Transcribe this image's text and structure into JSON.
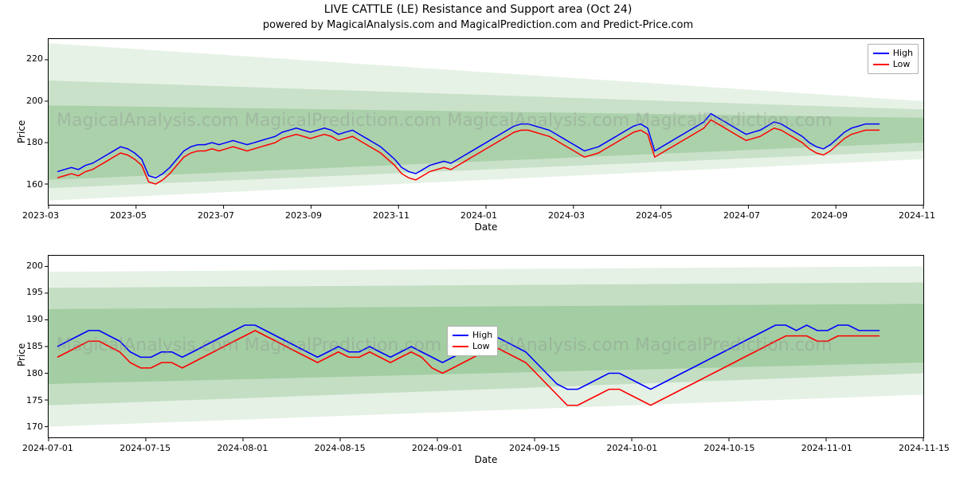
{
  "title": "LIVE CATTLE (LE) Resistance and Support area (Oct 24)",
  "subtitle": "powered by MagicalAnalysis.com and MagicalPrediction.com and Predict-Price.com",
  "watermark_text": "MagicalAnalysis.com          MagicalPrediction.com          MagicalAnalysis.com          MagicalPrediction.com",
  "watermark_color": "#8c8c8c",
  "watermark_opacity": 0.35,
  "panel_border_color": "#000000",
  "background_color": "#ffffff",
  "legend": {
    "high_label": "High",
    "low_label": "Low",
    "high_color": "#0000ff",
    "low_color": "#ff0000",
    "border_color": "#b0b0b0",
    "background": "#ffffff"
  },
  "top_chart": {
    "type": "line-with-bands",
    "xlabel": "Date",
    "ylabel": "Price",
    "ylim": [
      150,
      230
    ],
    "ytick_step": 20,
    "yticks": [
      160,
      180,
      200,
      220
    ],
    "xticks": [
      "2023-03",
      "2023-05",
      "2023-07",
      "2023-09",
      "2023-11",
      "2024-01",
      "2024-03",
      "2024-05",
      "2024-07",
      "2024-09",
      "2024-11"
    ],
    "high_color": "#0000ff",
    "low_color": "#ff0000",
    "band_color": "#7cb87c",
    "band_opacity_levels": [
      0.18,
      0.28,
      0.38
    ],
    "line_width": 1.5,
    "axis_fontsize": 11,
    "label_fontsize": 12,
    "bands": [
      {
        "y0_start": 152,
        "y0_end": 172,
        "y1_start": 228,
        "y1_end": 200
      },
      {
        "y0_start": 158,
        "y0_end": 176,
        "y1_start": 210,
        "y1_end": 196
      },
      {
        "y0_start": 162,
        "y0_end": 180,
        "y1_start": 198,
        "y1_end": 192
      }
    ],
    "high": [
      166,
      167,
      168,
      167,
      169,
      170,
      172,
      174,
      176,
      178,
      177,
      175,
      172,
      164,
      163,
      165,
      168,
      172,
      176,
      178,
      179,
      179,
      180,
      179,
      180,
      181,
      180,
      179,
      180,
      181,
      182,
      183,
      185,
      186,
      187,
      186,
      185,
      186,
      187,
      186,
      184,
      185,
      186,
      184,
      182,
      180,
      178,
      175,
      172,
      168,
      166,
      165,
      167,
      169,
      170,
      171,
      170,
      172,
      174,
      176,
      178,
      180,
      182,
      184,
      186,
      188,
      189,
      189,
      188,
      187,
      186,
      184,
      182,
      180,
      178,
      176,
      177,
      178,
      180,
      182,
      184,
      186,
      188,
      189,
      187,
      176,
      178,
      180,
      182,
      184,
      186,
      188,
      190,
      194,
      192,
      190,
      188,
      186,
      184,
      185,
      186,
      188,
      190,
      189,
      187,
      185,
      183,
      180,
      178,
      177,
      179,
      182,
      185,
      187,
      188,
      189,
      189,
      189
    ],
    "low": [
      163,
      164,
      165,
      164,
      166,
      167,
      169,
      171,
      173,
      175,
      174,
      172,
      169,
      161,
      160,
      162,
      165,
      169,
      173,
      175,
      176,
      176,
      177,
      176,
      177,
      178,
      177,
      176,
      177,
      178,
      179,
      180,
      182,
      183,
      184,
      183,
      182,
      183,
      184,
      183,
      181,
      182,
      183,
      181,
      179,
      177,
      175,
      172,
      169,
      165,
      163,
      162,
      164,
      166,
      167,
      168,
      167,
      169,
      171,
      173,
      175,
      177,
      179,
      181,
      183,
      185,
      186,
      186,
      185,
      184,
      183,
      181,
      179,
      177,
      175,
      173,
      174,
      175,
      177,
      179,
      181,
      183,
      185,
      186,
      184,
      173,
      175,
      177,
      179,
      181,
      183,
      185,
      187,
      191,
      189,
      187,
      185,
      183,
      181,
      182,
      183,
      185,
      187,
      186,
      184,
      182,
      180,
      177,
      175,
      174,
      176,
      179,
      182,
      184,
      185,
      186,
      186,
      186
    ]
  },
  "bottom_chart": {
    "type": "line-with-bands",
    "xlabel": "Date",
    "ylabel": "Price",
    "ylim": [
      168,
      202
    ],
    "ytick_step": 5,
    "yticks": [
      170,
      175,
      180,
      185,
      190,
      195,
      200
    ],
    "xticks": [
      "2024-07-01",
      "2024-07-15",
      "2024-08-01",
      "2024-08-15",
      "2024-09-01",
      "2024-09-15",
      "2024-10-01",
      "2024-10-15",
      "2024-11-01",
      "2024-11-15"
    ],
    "high_color": "#0000ff",
    "low_color": "#ff0000",
    "band_color": "#7cb87c",
    "band_opacity_levels": [
      0.2,
      0.32,
      0.45
    ],
    "line_width": 1.6,
    "axis_fontsize": 11,
    "label_fontsize": 12,
    "bands": [
      {
        "y0_start": 170,
        "y0_end": 176,
        "y1_start": 199,
        "y1_end": 200
      },
      {
        "y0_start": 174,
        "y0_end": 180,
        "y1_start": 196,
        "y1_end": 197
      },
      {
        "y0_start": 178,
        "y0_end": 182,
        "y1_start": 192,
        "y1_end": 193
      }
    ],
    "high": [
      185,
      186,
      187,
      188,
      188,
      187,
      186,
      184,
      183,
      183,
      184,
      184,
      183,
      184,
      185,
      186,
      187,
      188,
      189,
      189,
      188,
      187,
      186,
      185,
      184,
      183,
      184,
      185,
      184,
      184,
      185,
      184,
      183,
      184,
      185,
      184,
      183,
      182,
      183,
      184,
      185,
      186,
      187,
      186,
      185,
      184,
      182,
      180,
      178,
      177,
      177,
      178,
      179,
      180,
      180,
      179,
      178,
      177,
      178,
      179,
      180,
      181,
      182,
      183,
      184,
      185,
      186,
      187,
      188,
      189,
      189,
      188,
      189,
      188,
      188,
      189,
      189,
      188,
      188,
      188
    ],
    "low": [
      183,
      184,
      185,
      186,
      186,
      185,
      184,
      182,
      181,
      181,
      182,
      182,
      181,
      182,
      183,
      184,
      185,
      186,
      187,
      188,
      187,
      186,
      185,
      184,
      183,
      182,
      183,
      184,
      183,
      183,
      184,
      183,
      182,
      183,
      184,
      183,
      181,
      180,
      181,
      182,
      183,
      184,
      185,
      184,
      183,
      182,
      180,
      178,
      176,
      174,
      174,
      175,
      176,
      177,
      177,
      176,
      175,
      174,
      175,
      176,
      177,
      178,
      179,
      180,
      181,
      182,
      183,
      184,
      185,
      186,
      187,
      187,
      187,
      186,
      186,
      187,
      187,
      187,
      187,
      187
    ]
  }
}
